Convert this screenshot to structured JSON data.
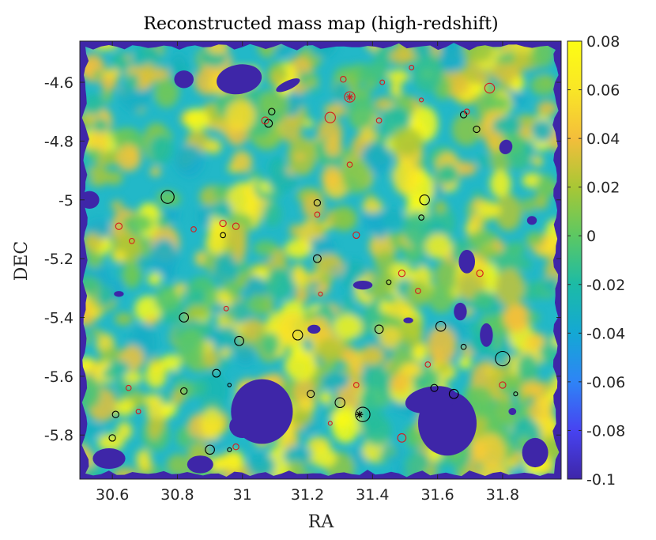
{
  "chart_data": {
    "type": "heatmap",
    "title": "Reconstructed mass map (high-redshift)",
    "xlabel": "RA",
    "ylabel": "DEC",
    "xlim": [
      30.5,
      31.98
    ],
    "ylim": [
      -5.95,
      -4.46
    ],
    "x_ticks": [
      30.6,
      30.8,
      31,
      31.2,
      31.4,
      31.6,
      31.8
    ],
    "x_tick_labels": [
      "30.6",
      "30.8",
      "31",
      "31.2",
      "31.4",
      "31.6",
      "31.8"
    ],
    "y_ticks": [
      -4.6,
      -4.8,
      -5,
      -5.2,
      -5.4,
      -5.6,
      -5.8
    ],
    "y_tick_labels": [
      "-4.6",
      "-4.8",
      "-5",
      "-5.2",
      "-5.4",
      "-5.6",
      "-5.8"
    ],
    "colorbar": {
      "min": -0.1,
      "max": 0.08,
      "ticks": [
        0.08,
        0.06,
        0.04,
        0.02,
        0,
        -0.02,
        -0.04,
        -0.06,
        -0.08,
        -0.1
      ],
      "tick_labels": [
        "0.08",
        "0.06",
        "0.04",
        "0.02",
        "0",
        "-0.02",
        "-0.04",
        "-0.06",
        "-0.08",
        "-0.1"
      ],
      "colormap": "parula",
      "colors": [
        "#3e26a8",
        "#4743f1",
        "#2e84f6",
        "#14a8d4",
        "#1cbba6",
        "#5cc863",
        "#a8c735",
        "#f4be3b",
        "#f9e626",
        "#fdfd13"
      ]
    },
    "clusters_black": [
      {
        "ra": 30.77,
        "dec": -4.99,
        "r": 0.02
      },
      {
        "ra": 31.09,
        "dec": -4.7,
        "r": 0.01
      },
      {
        "ra": 31.08,
        "dec": -4.74,
        "r": 0.012
      },
      {
        "ra": 31.23,
        "dec": -5.01,
        "r": 0.01
      },
      {
        "ra": 31.56,
        "dec": -5.0,
        "r": 0.015
      },
      {
        "ra": 31.55,
        "dec": -5.06,
        "r": 0.008
      },
      {
        "ra": 31.68,
        "dec": -4.71,
        "r": 0.01
      },
      {
        "ra": 31.72,
        "dec": -4.76,
        "r": 0.01
      },
      {
        "ra": 30.94,
        "dec": -5.12,
        "r": 0.008
      },
      {
        "ra": 31.23,
        "dec": -5.2,
        "r": 0.012
      },
      {
        "ra": 30.82,
        "dec": -5.4,
        "r": 0.014
      },
      {
        "ra": 30.99,
        "dec": -5.48,
        "r": 0.014
      },
      {
        "ra": 31.17,
        "dec": -5.46,
        "r": 0.015
      },
      {
        "ra": 31.42,
        "dec": -5.44,
        "r": 0.013
      },
      {
        "ra": 31.61,
        "dec": -5.43,
        "r": 0.015
      },
      {
        "ra": 31.68,
        "dec": -5.5,
        "r": 0.008
      },
      {
        "ra": 31.45,
        "dec": -5.28,
        "r": 0.007
      },
      {
        "ra": 30.92,
        "dec": -5.59,
        "r": 0.012
      },
      {
        "ra": 30.82,
        "dec": -5.65,
        "r": 0.01
      },
      {
        "ra": 30.96,
        "dec": -5.63,
        "r": 0.005
      },
      {
        "ra": 31.21,
        "dec": -5.66,
        "r": 0.011
      },
      {
        "ra": 31.3,
        "dec": -5.69,
        "r": 0.015
      },
      {
        "ra": 31.37,
        "dec": -5.73,
        "r": 0.022
      },
      {
        "ra": 31.59,
        "dec": -5.64,
        "r": 0.011
      },
      {
        "ra": 31.65,
        "dec": -5.66,
        "r": 0.014
      },
      {
        "ra": 31.8,
        "dec": -5.54,
        "r": 0.022
      },
      {
        "ra": 31.84,
        "dec": -5.66,
        "r": 0.006
      },
      {
        "ra": 30.61,
        "dec": -5.73,
        "r": 0.01
      },
      {
        "ra": 30.6,
        "dec": -5.81,
        "r": 0.01
      },
      {
        "ra": 30.9,
        "dec": -5.85,
        "r": 0.014
      },
      {
        "ra": 30.96,
        "dec": -5.85,
        "r": 0.006
      }
    ],
    "clusters_red": [
      {
        "ra": 31.31,
        "dec": -4.59,
        "r": 0.009
      },
      {
        "ra": 31.43,
        "dec": -4.6,
        "r": 0.007
      },
      {
        "ra": 31.52,
        "dec": -4.55,
        "r": 0.007
      },
      {
        "ra": 31.33,
        "dec": -4.65,
        "r": 0.016
      },
      {
        "ra": 31.27,
        "dec": -4.72,
        "r": 0.016
      },
      {
        "ra": 31.42,
        "dec": -4.73,
        "r": 0.008
      },
      {
        "ra": 31.55,
        "dec": -4.66,
        "r": 0.006
      },
      {
        "ra": 31.76,
        "dec": -4.62,
        "r": 0.015
      },
      {
        "ra": 31.69,
        "dec": -4.7,
        "r": 0.008
      },
      {
        "ra": 31.07,
        "dec": -4.73,
        "r": 0.011
      },
      {
        "ra": 31.33,
        "dec": -4.88,
        "r": 0.008
      },
      {
        "ra": 31.23,
        "dec": -5.05,
        "r": 0.008
      },
      {
        "ra": 30.62,
        "dec": -5.09,
        "r": 0.01
      },
      {
        "ra": 30.66,
        "dec": -5.14,
        "r": 0.008
      },
      {
        "ra": 30.85,
        "dec": -5.1,
        "r": 0.008
      },
      {
        "ra": 30.94,
        "dec": -5.08,
        "r": 0.01
      },
      {
        "ra": 30.98,
        "dec": -5.09,
        "r": 0.01
      },
      {
        "ra": 31.35,
        "dec": -5.12,
        "r": 0.01
      },
      {
        "ra": 31.49,
        "dec": -5.25,
        "r": 0.01
      },
      {
        "ra": 31.73,
        "dec": -5.25,
        "r": 0.01
      },
      {
        "ra": 31.24,
        "dec": -5.32,
        "r": 0.006
      },
      {
        "ra": 31.54,
        "dec": -5.31,
        "r": 0.008
      },
      {
        "ra": 30.95,
        "dec": -5.37,
        "r": 0.007
      },
      {
        "ra": 31.57,
        "dec": -5.56,
        "r": 0.008
      },
      {
        "ra": 31.35,
        "dec": -5.63,
        "r": 0.008
      },
      {
        "ra": 31.8,
        "dec": -5.63,
        "r": 0.01
      },
      {
        "ra": 30.65,
        "dec": -5.64,
        "r": 0.008
      },
      {
        "ra": 30.68,
        "dec": -5.72,
        "r": 0.007
      },
      {
        "ra": 31.27,
        "dec": -5.76,
        "r": 0.006
      },
      {
        "ra": 31.49,
        "dec": -5.81,
        "r": 0.013
      },
      {
        "ra": 30.98,
        "dec": -5.84,
        "r": 0.009
      }
    ],
    "red_stars": [
      {
        "ra": 31.33,
        "dec": -4.65
      }
    ],
    "black_stars": [
      {
        "ra": 31.36,
        "dec": -5.73
      }
    ],
    "voids": [
      {
        "ra": 30.82,
        "dec": -4.59,
        "rx": 0.03,
        "ry": 0.03,
        "rot": 0
      },
      {
        "ra": 30.99,
        "dec": -4.59,
        "rx": 0.07,
        "ry": 0.05,
        "rot": -10
      },
      {
        "ra": 31.14,
        "dec": -4.61,
        "rx": 0.04,
        "ry": 0.015,
        "rot": -25
      },
      {
        "ra": 31.81,
        "dec": -4.82,
        "rx": 0.02,
        "ry": 0.025,
        "rot": 20
      },
      {
        "ra": 31.06,
        "dec": -5.72,
        "rx": 0.095,
        "ry": 0.11,
        "rot": 0
      },
      {
        "ra": 31.0,
        "dec": -5.77,
        "rx": 0.04,
        "ry": 0.04,
        "rot": 0
      },
      {
        "ra": 31.63,
        "dec": -5.76,
        "rx": 0.09,
        "ry": 0.11,
        "rot": 0
      },
      {
        "ra": 31.58,
        "dec": -5.68,
        "rx": 0.08,
        "ry": 0.045,
        "rot": -10
      },
      {
        "ra": 31.69,
        "dec": -5.21,
        "rx": 0.025,
        "ry": 0.04,
        "rot": 0
      },
      {
        "ra": 31.67,
        "dec": -5.38,
        "rx": 0.02,
        "ry": 0.03,
        "rot": 0
      },
      {
        "ra": 31.75,
        "dec": -5.46,
        "rx": 0.02,
        "ry": 0.04,
        "rot": 0
      },
      {
        "ra": 30.59,
        "dec": -5.88,
        "rx": 0.05,
        "ry": 0.035,
        "rot": 0
      },
      {
        "ra": 30.87,
        "dec": -5.9,
        "rx": 0.04,
        "ry": 0.03,
        "rot": 0
      },
      {
        "ra": 31.9,
        "dec": -5.86,
        "rx": 0.04,
        "ry": 0.05,
        "rot": 0
      },
      {
        "ra": 30.53,
        "dec": -5.0,
        "rx": 0.03,
        "ry": 0.03,
        "rot": 0
      },
      {
        "ra": 31.37,
        "dec": -5.29,
        "rx": 0.03,
        "ry": 0.015,
        "rot": 0
      },
      {
        "ra": 31.22,
        "dec": -5.44,
        "rx": 0.02,
        "ry": 0.015,
        "rot": 0
      },
      {
        "ra": 31.51,
        "dec": -5.41,
        "rx": 0.015,
        "ry": 0.01,
        "rot": 0
      },
      {
        "ra": 30.62,
        "dec": -5.32,
        "rx": 0.015,
        "ry": 0.01,
        "rot": 0
      },
      {
        "ra": 31.89,
        "dec": -5.07,
        "rx": 0.015,
        "ry": 0.015,
        "rot": 0
      },
      {
        "ra": 31.83,
        "dec": -5.72,
        "rx": 0.012,
        "ry": 0.012,
        "rot": 0
      }
    ]
  }
}
